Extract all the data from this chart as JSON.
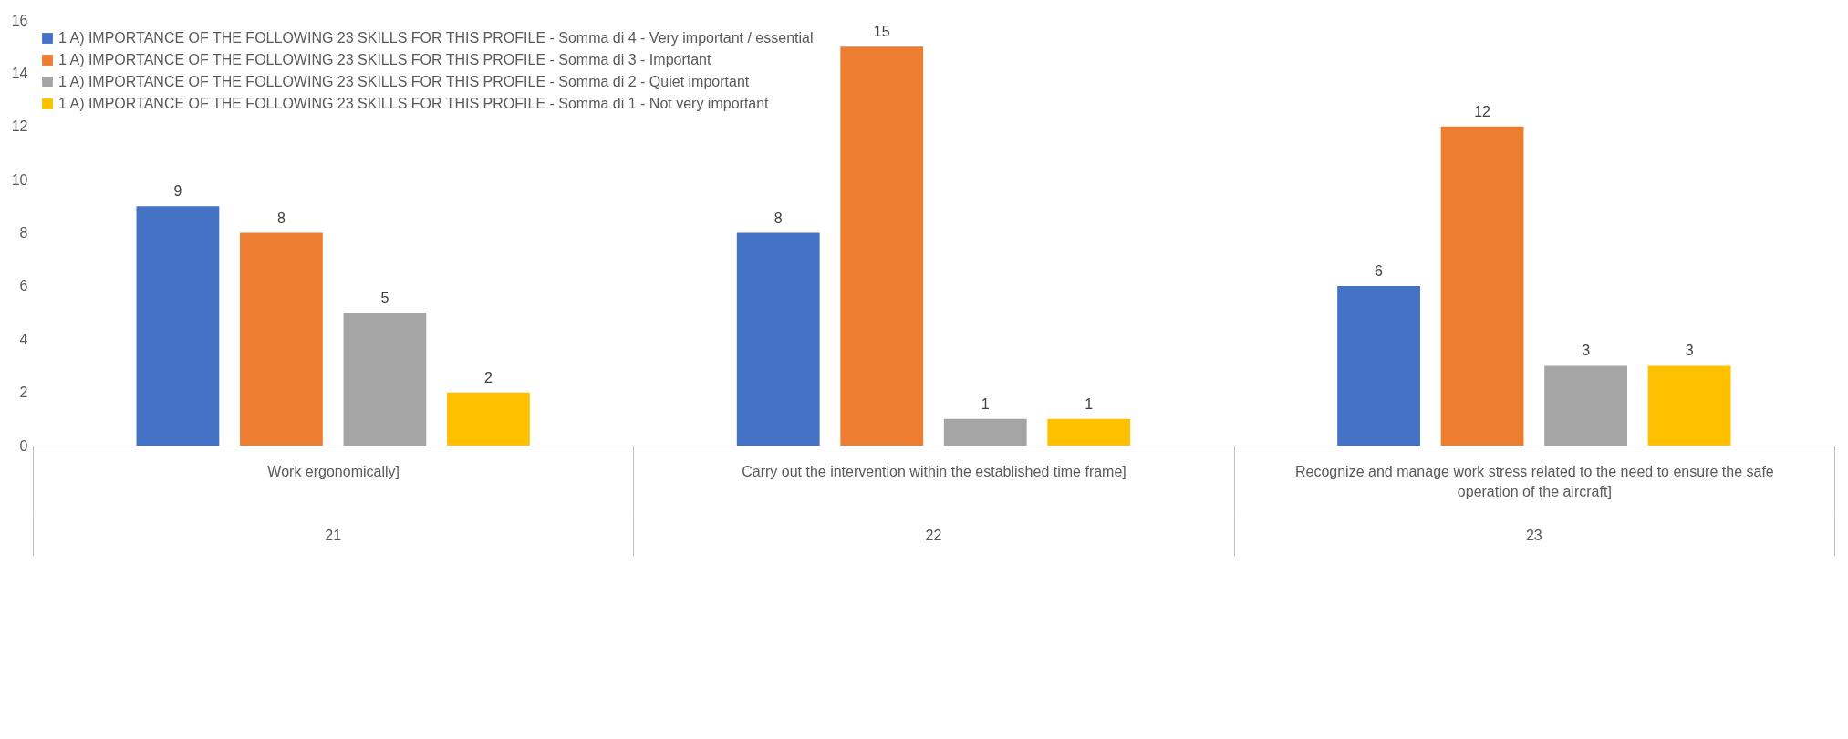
{
  "chart_data": {
    "type": "bar",
    "categories": [
      "Work ergonomically]",
      "Carry out the intervention within the established time frame]",
      "Recognize and manage work stress related to the need to ensure the safe operation of the aircraft]"
    ],
    "series": [
      {
        "name": "1 A) IMPORTANCE OF THE FOLLOWING 23 SKILLS FOR THIS PROFILE - Somma di 4 - Very important / essential",
        "color": "#4472c4",
        "values": [
          9,
          8,
          6
        ]
      },
      {
        "name": "1 A) IMPORTANCE OF THE FOLLOWING 23 SKILLS FOR THIS PROFILE - Somma di 3 - Important",
        "color": "#ed7d31",
        "values": [
          8,
          15,
          12
        ]
      },
      {
        "name": "1 A) IMPORTANCE OF THE FOLLOWING 23 SKILLS FOR THIS PROFILE - Somma di 2 - Quiet important",
        "color": "#a5a5a5",
        "values": [
          5,
          1,
          3
        ]
      },
      {
        "name": "1 A) IMPORTANCE OF THE FOLLOWING 23 SKILLS FOR THIS PROFILE - Somma di 1 - Not very important",
        "color": "#ffc000",
        "values": [
          2,
          1,
          3
        ]
      }
    ],
    "ylim": [
      0,
      16
    ],
    "yticks": [
      0,
      2,
      4,
      6,
      8,
      10,
      12,
      14,
      16
    ],
    "data_labels": true,
    "legend": "top left",
    "annotations": [
      "21",
      "22",
      "23"
    ]
  }
}
